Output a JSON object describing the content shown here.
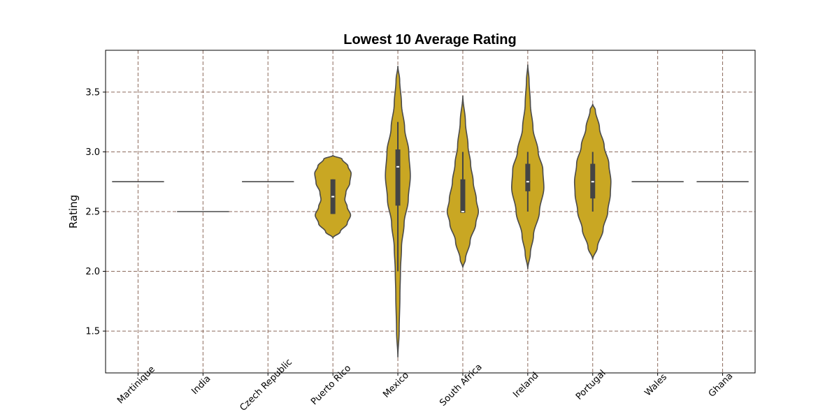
{
  "chart_data": {
    "type": "violin",
    "title": "Lowest 10 Average Rating",
    "xlabel": "",
    "ylabel": "Rating",
    "ylim": [
      1.15,
      3.85
    ],
    "yticks": [
      "1.5",
      "2.0",
      "2.5",
      "3.0",
      "3.5"
    ],
    "grid": true,
    "color": "#c9a723",
    "categories": [
      "Martinique",
      "India",
      "Czech Republic",
      "Puerto Rico",
      "Mexico",
      "South Africa",
      "Ireland",
      "Portugal",
      "Wales",
      "Ghana"
    ],
    "distributions": [
      {
        "category": "Martinique",
        "single_value": 2.75
      },
      {
        "category": "India",
        "single_value": 2.5
      },
      {
        "category": "Czech Republic",
        "single_value": 2.75
      },
      {
        "category": "Puerto Rico",
        "min": 2.28,
        "max": 2.97,
        "q1": 2.48,
        "median": 2.625,
        "q3": 2.77,
        "whisker_low": 2.48,
        "whisker_high": 2.77,
        "profile": [
          [
            2.28,
            0.0
          ],
          [
            2.33,
            0.28
          ],
          [
            2.4,
            0.55
          ],
          [
            2.47,
            0.68
          ],
          [
            2.54,
            0.55
          ],
          [
            2.6,
            0.46
          ],
          [
            2.66,
            0.5
          ],
          [
            2.74,
            0.65
          ],
          [
            2.82,
            0.7
          ],
          [
            2.88,
            0.58
          ],
          [
            2.94,
            0.35
          ],
          [
            2.97,
            0.0
          ]
        ]
      },
      {
        "category": "Mexico",
        "min": 1.28,
        "max": 3.72,
        "q1": 2.55,
        "median": 2.875,
        "q3": 3.02,
        "whisker_low": 2.0,
        "whisker_high": 3.25,
        "profile": [
          [
            1.28,
            0.0
          ],
          [
            1.5,
            0.05
          ],
          [
            1.8,
            0.08
          ],
          [
            2.0,
            0.1
          ],
          [
            2.2,
            0.14
          ],
          [
            2.4,
            0.24
          ],
          [
            2.6,
            0.4
          ],
          [
            2.8,
            0.48
          ],
          [
            3.0,
            0.42
          ],
          [
            3.2,
            0.26
          ],
          [
            3.4,
            0.14
          ],
          [
            3.6,
            0.07
          ],
          [
            3.72,
            0.0
          ]
        ]
      },
      {
        "category": "South Africa",
        "min": 2.03,
        "max": 3.47,
        "q1": 2.49,
        "median": 2.5,
        "q3": 2.77,
        "whisker_low": 2.49,
        "whisker_high": 3.0,
        "profile": [
          [
            2.03,
            0.0
          ],
          [
            2.1,
            0.1
          ],
          [
            2.25,
            0.28
          ],
          [
            2.4,
            0.5
          ],
          [
            2.5,
            0.6
          ],
          [
            2.6,
            0.52
          ],
          [
            2.75,
            0.4
          ],
          [
            2.9,
            0.3
          ],
          [
            3.05,
            0.2
          ],
          [
            3.25,
            0.1
          ],
          [
            3.47,
            0.0
          ]
        ]
      },
      {
        "category": "Ireland",
        "min": 2.02,
        "max": 3.73,
        "q1": 2.67,
        "median": 2.75,
        "q3": 2.9,
        "whisker_low": 2.5,
        "whisker_high": 3.0,
        "profile": [
          [
            2.02,
            0.0
          ],
          [
            2.15,
            0.1
          ],
          [
            2.3,
            0.22
          ],
          [
            2.5,
            0.45
          ],
          [
            2.7,
            0.62
          ],
          [
            2.85,
            0.58
          ],
          [
            3.0,
            0.4
          ],
          [
            3.2,
            0.2
          ],
          [
            3.4,
            0.1
          ],
          [
            3.6,
            0.05
          ],
          [
            3.73,
            0.0
          ]
        ]
      },
      {
        "category": "Portugal",
        "min": 2.1,
        "max": 3.4,
        "q1": 2.61,
        "median": 2.75,
        "q3": 2.9,
        "whisker_low": 2.5,
        "whisker_high": 3.0,
        "profile": [
          [
            2.1,
            0.0
          ],
          [
            2.2,
            0.18
          ],
          [
            2.35,
            0.4
          ],
          [
            2.5,
            0.58
          ],
          [
            2.65,
            0.68
          ],
          [
            2.75,
            0.7
          ],
          [
            2.9,
            0.62
          ],
          [
            3.05,
            0.44
          ],
          [
            3.2,
            0.26
          ],
          [
            3.35,
            0.1
          ],
          [
            3.4,
            0.0
          ]
        ]
      },
      {
        "category": "Wales",
        "single_value": 2.75
      },
      {
        "category": "Ghana",
        "single_value": 2.75
      }
    ]
  }
}
